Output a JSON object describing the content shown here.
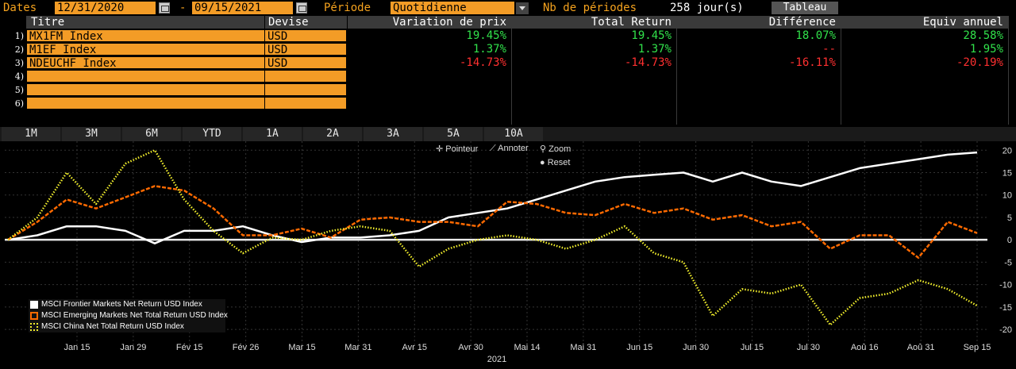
{
  "toolbar": {
    "dates_label": "Dates",
    "start_date": "12/31/2020",
    "dash": "-",
    "end_date": "09/15/2021",
    "periode_label": "Période",
    "periode_value": "Quotidienne",
    "nb_label": "Nb de périodes",
    "nb_value": "258 jour(s)",
    "tableau_label": "Tableau"
  },
  "table": {
    "headers": {
      "titre": "Titre",
      "devise": "Devise",
      "variation": "Variation de prix",
      "total": "Total Return",
      "difference": "Différence",
      "equiv": "Equiv annuel"
    },
    "rows": [
      {
        "num": "1)",
        "titre": "MX1FM Index",
        "devise": "USD",
        "variation": "19.45%",
        "total": "19.45%",
        "difference": "18.07%",
        "equiv": "28.58%",
        "color": "#31e24b"
      },
      {
        "num": "2)",
        "titre": "M1EF Index",
        "devise": "USD",
        "variation": "1.37%",
        "total": "1.37%",
        "difference": "--",
        "equiv": "1.95%",
        "color": "#31e24b",
        "diff_color": "#ff3030"
      },
      {
        "num": "3)",
        "titre": "NDEUCHF Index",
        "devise": "USD",
        "variation": "-14.73%",
        "total": "-14.73%",
        "difference": "-16.11%",
        "equiv": "-20.19%",
        "color": "#ff3030"
      },
      {
        "num": "4)",
        "titre": "",
        "devise": "",
        "variation": "",
        "total": "",
        "difference": "",
        "equiv": ""
      },
      {
        "num": "5)",
        "titre": "",
        "devise": "",
        "variation": "",
        "total": "",
        "difference": "",
        "equiv": ""
      },
      {
        "num": "6)",
        "titre": "",
        "devise": "",
        "variation": "",
        "total": "",
        "difference": "",
        "equiv": ""
      }
    ]
  },
  "periods": [
    "1M",
    "3M",
    "6M",
    "YTD",
    "1A",
    "2A",
    "3A",
    "5A",
    "10A"
  ],
  "chart_tools": {
    "pointeur": "Pointeur",
    "annoter": "Annoter",
    "zoom": "Zoom",
    "reset": "Reset"
  },
  "chart_data": {
    "type": "line",
    "x_ticks": [
      "Jan 15",
      "Jan 29",
      "Fév 15",
      "Fév 26",
      "Mar 15",
      "Mar 31",
      "Avr 15",
      "Avr 30",
      "Mai 14",
      "Mai 31",
      "Jun 15",
      "Jun 30",
      "Jul 15",
      "Jul 30",
      "Aoû 16",
      "Aoû 31",
      "Sep 15"
    ],
    "x_year": "2021",
    "y_ticks": [
      20,
      15,
      10,
      5,
      0,
      -5,
      -10,
      -15,
      -20
    ],
    "ylim": [
      -23,
      22
    ],
    "grid": true,
    "legend_position": "bottom-left",
    "series": [
      {
        "name": "MSCI Frontier Markets Net Return USD Index",
        "color": "#ffffff",
        "style": "solid",
        "x": [
          0,
          0.5,
          1,
          1.5,
          2,
          2.5,
          3,
          3.5,
          4,
          4.5,
          5,
          5.5,
          6,
          6.5,
          7,
          7.5,
          8,
          8.5,
          9,
          9.5,
          10,
          10.5,
          11,
          11.5,
          12,
          12.5,
          13,
          13.5,
          14,
          14.5,
          15,
          15.5,
          16,
          16.5
        ],
        "y": [
          0,
          1,
          3,
          3,
          2,
          -0.8,
          2,
          2,
          3,
          1,
          -0.5,
          0.5,
          0.5,
          1,
          2,
          5,
          6,
          7,
          9,
          11,
          13,
          14,
          14.5,
          15,
          13,
          15,
          13,
          12,
          14,
          16,
          17,
          18,
          19,
          19.5
        ]
      },
      {
        "name": "MSCI Emerging Markets Net Total Return USD Index",
        "color": "#ff6a00",
        "style": "dashed",
        "x": [
          0,
          0.5,
          1,
          1.5,
          2,
          2.5,
          3,
          3.5,
          4,
          4.5,
          5,
          5.5,
          6,
          6.5,
          7,
          7.5,
          8,
          8.5,
          9,
          9.5,
          10,
          10.5,
          11,
          11.5,
          12,
          12.5,
          13,
          13.5,
          14,
          14.5,
          15,
          15.5,
          16,
          16.5
        ],
        "y": [
          0,
          4,
          9,
          7,
          9.5,
          12,
          11,
          7,
          1,
          1,
          2.5,
          0.5,
          4.5,
          5,
          4,
          4,
          3,
          8.5,
          8,
          6,
          5.5,
          8,
          6,
          7,
          4.5,
          5.5,
          3,
          4,
          -2,
          1,
          1,
          -4,
          4,
          1.5
        ]
      },
      {
        "name": "MSCI China Net Total Return USD Index",
        "color": "#f1ee2c",
        "style": "dotted",
        "x": [
          0,
          0.5,
          1,
          1.5,
          2,
          2.5,
          3,
          3.5,
          4,
          4.5,
          5,
          5.5,
          6,
          6.5,
          7,
          7.5,
          8,
          8.5,
          9,
          9.5,
          10,
          10.5,
          11,
          11.5,
          12,
          12.5,
          13,
          13.5,
          14,
          14.5,
          15,
          15.5,
          16,
          16.5
        ],
        "y": [
          0,
          5,
          15,
          8,
          17,
          20,
          9,
          2,
          -3,
          0.5,
          0,
          2,
          3,
          2,
          -6,
          -2,
          0,
          1,
          0,
          -2,
          0,
          3,
          -3,
          -5,
          -17,
          -11,
          -12,
          -10,
          -19,
          -13,
          -12,
          -9,
          -11,
          -14.7
        ]
      }
    ]
  }
}
